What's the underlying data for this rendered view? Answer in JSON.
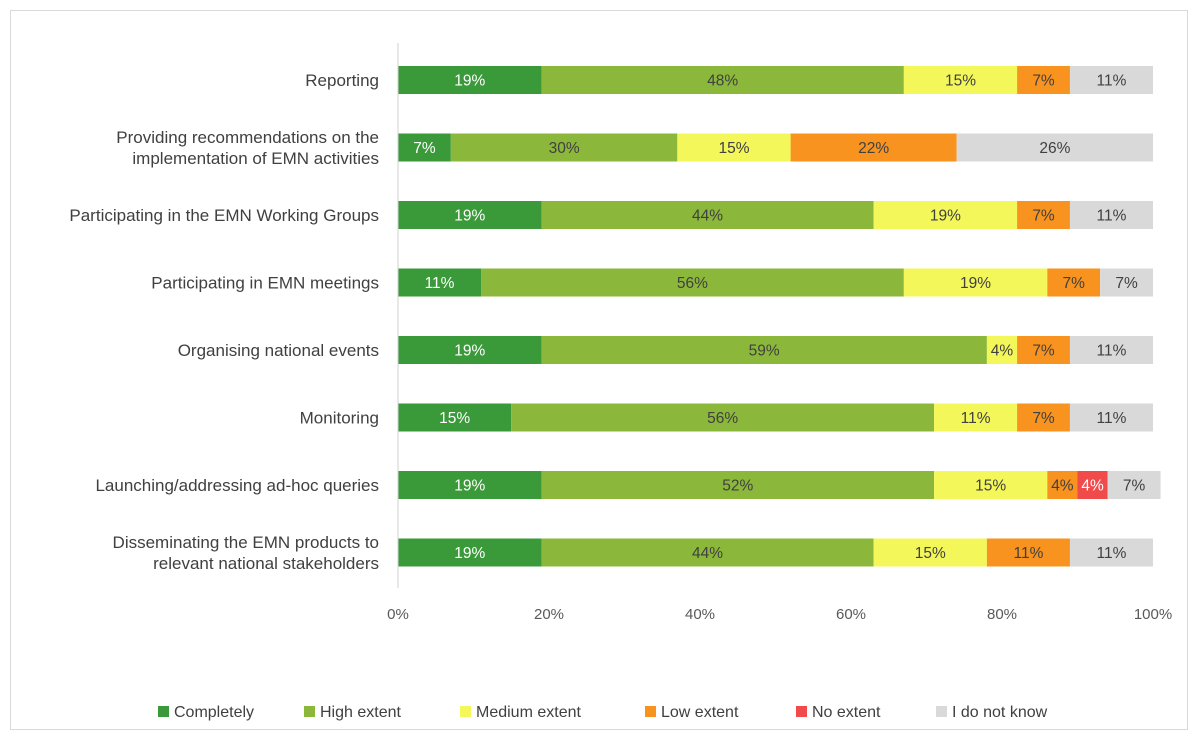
{
  "chart_data": {
    "type": "bar",
    "orientation": "horizontal",
    "stacked": "100%",
    "categories": [
      [
        "Reporting"
      ],
      [
        "Providing recommendations on the",
        "implementation of EMN activities"
      ],
      [
        "Participating in the EMN Working Groups"
      ],
      [
        "Participating in EMN meetings"
      ],
      [
        "Organising national events"
      ],
      [
        "Monitoring"
      ],
      [
        "Launching/addressing ad-hoc queries"
      ],
      [
        "Disseminating the EMN products to",
        "relevant national stakeholders"
      ]
    ],
    "series": [
      {
        "name": "Completely",
        "color": "#3a9a3a",
        "labelColor": "#ffffff",
        "values": [
          19,
          7,
          19,
          11,
          19,
          15,
          19,
          19
        ]
      },
      {
        "name": "High extent",
        "color": "#8bb83a",
        "labelColor": "#404040",
        "values": [
          48,
          30,
          44,
          56,
          59,
          56,
          52,
          44
        ]
      },
      {
        "name": "Medium extent",
        "color": "#f4f75a",
        "labelColor": "#404040",
        "values": [
          15,
          15,
          19,
          19,
          4,
          11,
          15,
          15
        ]
      },
      {
        "name": "Low extent",
        "color": "#f7931e",
        "labelColor": "#404040",
        "values": [
          7,
          22,
          7,
          7,
          7,
          7,
          4,
          11
        ]
      },
      {
        "name": "No extent",
        "color": "#f04a4a",
        "labelColor": "#ffffff",
        "values": [
          0,
          0,
          0,
          0,
          0,
          0,
          4,
          0
        ]
      },
      {
        "name": "I do not know",
        "color": "#d9d9d9",
        "labelColor": "#404040",
        "values": [
          11,
          26,
          11,
          7,
          11,
          11,
          7,
          11
        ]
      }
    ],
    "xticks": [
      "0%",
      "20%",
      "40%",
      "60%",
      "80%",
      "100%"
    ],
    "xlim": [
      0,
      100
    ],
    "legend_position": "bottom",
    "grid": false
  }
}
